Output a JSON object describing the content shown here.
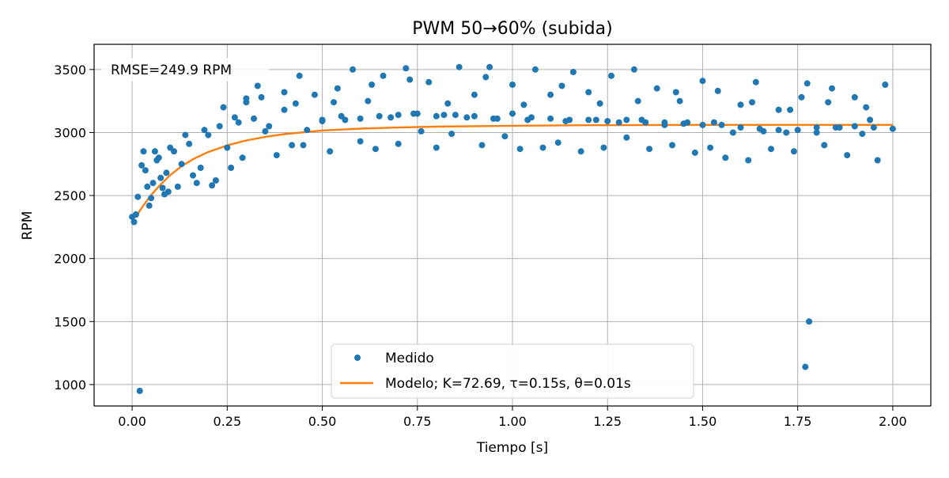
{
  "colors": {
    "measured": "#1f77b4",
    "model": "#ff7f0e",
    "grid": "#b0b0b0",
    "axis": "#000000"
  },
  "chart_data": {
    "type": "scatter",
    "title": "PWM 50→60% (subida)",
    "xlabel": "Tiempo [s]",
    "ylabel": "RPM",
    "xlim": [
      -0.1,
      2.1
    ],
    "ylim": [
      830,
      3700
    ],
    "xticks": [
      0.0,
      0.25,
      0.5,
      0.75,
      1.0,
      1.25,
      1.5,
      1.75,
      2.0
    ],
    "xtick_labels": [
      "0.00",
      "0.25",
      "0.50",
      "0.75",
      "1.00",
      "1.25",
      "1.50",
      "1.75",
      "2.00"
    ],
    "yticks": [
      1000,
      1500,
      2000,
      2500,
      3000,
      3500
    ],
    "ytick_labels": [
      "1000",
      "1500",
      "2000",
      "2500",
      "3000",
      "3500"
    ],
    "grid": true,
    "legend_position": "lower-center",
    "annotation": "RMSE=249.9 RPM",
    "series": [
      {
        "name": "Medido",
        "kind": "scatter",
        "x": [
          0.0,
          0.005,
          0.01,
          0.015,
          0.02,
          0.025,
          0.03,
          0.035,
          0.04,
          0.045,
          0.05,
          0.055,
          0.06,
          0.065,
          0.07,
          0.075,
          0.08,
          0.085,
          0.09,
          0.095,
          0.1,
          0.11,
          0.12,
          0.13,
          0.14,
          0.15,
          0.16,
          0.17,
          0.18,
          0.19,
          0.2,
          0.21,
          0.22,
          0.23,
          0.24,
          0.25,
          0.26,
          0.27,
          0.28,
          0.29,
          0.3,
          0.32,
          0.34,
          0.36,
          0.38,
          0.4,
          0.42,
          0.44,
          0.46,
          0.48,
          0.5,
          0.52,
          0.54,
          0.56,
          0.58,
          0.6,
          0.62,
          0.64,
          0.66,
          0.68,
          0.7,
          0.72,
          0.74,
          0.76,
          0.78,
          0.8,
          0.82,
          0.84,
          0.86,
          0.88,
          0.9,
          0.92,
          0.94,
          0.96,
          0.98,
          1.0,
          1.02,
          1.04,
          1.06,
          1.08,
          1.1,
          1.12,
          1.14,
          1.16,
          1.18,
          1.2,
          1.22,
          1.24,
          1.26,
          1.28,
          1.3,
          1.32,
          1.34,
          1.36,
          1.38,
          1.4,
          1.42,
          1.44,
          1.46,
          1.48,
          1.5,
          1.52,
          1.54,
          1.56,
          1.58,
          1.6,
          1.62,
          1.64,
          1.66,
          1.68,
          1.7,
          1.72,
          1.74,
          1.76,
          1.77,
          1.775,
          1.78,
          1.8,
          1.82,
          1.84,
          1.86,
          1.88,
          1.9,
          1.92,
          1.94,
          1.96,
          1.98,
          2.0,
          0.3,
          0.35,
          0.4,
          0.45,
          0.5,
          0.55,
          0.6,
          0.65,
          0.7,
          0.75,
          0.8,
          0.85,
          0.9,
          0.95,
          1.0,
          1.05,
          1.1,
          1.15,
          1.2,
          1.25,
          1.3,
          1.35,
          1.4,
          1.45,
          1.5,
          1.55,
          1.6,
          1.65,
          1.7,
          1.75,
          1.8,
          1.85,
          1.9,
          1.95,
          0.33,
          0.43,
          0.53,
          0.63,
          0.73,
          0.83,
          0.93,
          1.03,
          1.13,
          1.23,
          1.33,
          1.43,
          1.53,
          1.63,
          1.73,
          1.83,
          1.93
        ],
        "y": [
          2330,
          2290,
          2350,
          2490,
          950,
          2740,
          2850,
          2700,
          2570,
          2420,
          2480,
          2600,
          2850,
          2780,
          2800,
          2640,
          2560,
          2510,
          2680,
          2530,
          2880,
          2850,
          2570,
          2750,
          2980,
          2910,
          2660,
          2600,
          2720,
          3020,
          2980,
          2580,
          2620,
          3050,
          3200,
          2880,
          2720,
          3120,
          3080,
          2800,
          3240,
          3110,
          3280,
          3050,
          2820,
          3180,
          2900,
          3450,
          3020,
          3300,
          3090,
          2850,
          3350,
          3100,
          3500,
          2930,
          3250,
          2870,
          3450,
          3120,
          2910,
          3510,
          3150,
          3010,
          3400,
          2880,
          3140,
          2990,
          3520,
          3120,
          3300,
          2900,
          3520,
          3110,
          2970,
          3380,
          2870,
          3100,
          3500,
          2880,
          3300,
          2920,
          3090,
          3480,
          2850,
          3320,
          3100,
          2880,
          3450,
          3080,
          2960,
          3500,
          3100,
          2870,
          3350,
          3060,
          2900,
          3250,
          3080,
          2840,
          3410,
          2880,
          3330,
          2800,
          3000,
          3220,
          2780,
          3400,
          3010,
          2870,
          3180,
          3000,
          2850,
          3280,
          1140,
          3390,
          1500,
          3000,
          2900,
          3350,
          3040,
          2820,
          3280,
          2990,
          3100,
          2780,
          3380,
          3030,
          3270,
          3010,
          3320,
          2900,
          3100,
          3130,
          3110,
          3130,
          3140,
          3150,
          3130,
          3140,
          3130,
          3110,
          3150,
          3120,
          3110,
          3100,
          3100,
          3090,
          3100,
          3080,
          3080,
          3070,
          3060,
          3060,
          3040,
          3030,
          3020,
          3020,
          3040,
          3040,
          3050,
          3040,
          3370,
          3230,
          3240,
          3380,
          3420,
          3230,
          3440,
          3220,
          3370,
          3230,
          3250,
          3320,
          3080,
          3240,
          3180,
          3240,
          3200
        ]
      },
      {
        "name": "Modelo; K=72.69, τ=0.15s, θ=0.01s",
        "kind": "line",
        "x": [
          0.0,
          0.01,
          0.02,
          0.03,
          0.05,
          0.07,
          0.1,
          0.13,
          0.16,
          0.2,
          0.25,
          0.3,
          0.35,
          0.4,
          0.5,
          0.6,
          0.7,
          0.8,
          1.0,
          1.2,
          1.4,
          1.6,
          1.8,
          2.0
        ],
        "y": [
          2330,
          2330,
          2378,
          2423,
          2503,
          2573,
          2662,
          2733,
          2788,
          2845,
          2898,
          2937,
          2966,
          2987,
          3016,
          3031,
          3040,
          3047,
          3054,
          3058,
          3060,
          3061,
          3061,
          3061
        ]
      }
    ]
  }
}
